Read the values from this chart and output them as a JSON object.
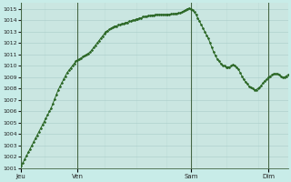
{
  "background_color": "#c8ece8",
  "plot_bg_color": "#d4ede8",
  "grid_color": "#a8ccc8",
  "line_color": "#2a6624",
  "marker_color": "#2a6624",
  "ylim": [
    1001,
    1015.5
  ],
  "ytick_min": 1001,
  "ytick_max": 1015,
  "xtick_labels": [
    "Jeu",
    "Ven",
    "Sam",
    "Dim"
  ],
  "xtick_positions": [
    0,
    32,
    96,
    140
  ],
  "vline_positions": [
    0,
    32,
    96,
    140
  ],
  "total_points": 152,
  "y_values": [
    1001.2,
    1001.5,
    1001.8,
    1002.1,
    1002.4,
    1002.7,
    1003.0,
    1003.3,
    1003.6,
    1003.9,
    1004.2,
    1004.5,
    1004.8,
    1005.1,
    1005.4,
    1005.7,
    1006.0,
    1006.3,
    1006.7,
    1007.1,
    1007.5,
    1007.9,
    1008.2,
    1008.5,
    1008.8,
    1009.1,
    1009.4,
    1009.6,
    1009.8,
    1010.0,
    1010.2,
    1010.4,
    1010.5,
    1010.6,
    1010.7,
    1010.8,
    1010.9,
    1011.0,
    1011.1,
    1011.2,
    1011.4,
    1011.6,
    1011.8,
    1012.0,
    1012.2,
    1012.4,
    1012.6,
    1012.8,
    1013.0,
    1013.1,
    1013.2,
    1013.3,
    1013.4,
    1013.5,
    1013.5,
    1013.6,
    1013.6,
    1013.7,
    1013.7,
    1013.8,
    1013.8,
    1013.9,
    1013.9,
    1014.0,
    1014.0,
    1014.1,
    1014.1,
    1014.2,
    1014.2,
    1014.3,
    1014.3,
    1014.35,
    1014.4,
    1014.4,
    1014.45,
    1014.45,
    1014.5,
    1014.5,
    1014.5,
    1014.5,
    1014.5,
    1014.5,
    1014.5,
    1014.5,
    1014.52,
    1014.54,
    1014.56,
    1014.58,
    1014.6,
    1014.62,
    1014.65,
    1014.7,
    1014.8,
    1014.9,
    1015.0,
    1015.05,
    1015.0,
    1014.9,
    1014.7,
    1014.5,
    1014.2,
    1013.9,
    1013.6,
    1013.3,
    1013.0,
    1012.7,
    1012.4,
    1012.0,
    1011.6,
    1011.2,
    1010.9,
    1010.6,
    1010.4,
    1010.2,
    1010.05,
    1010.0,
    1009.9,
    1009.9,
    1009.9,
    1010.0,
    1010.1,
    1010.0,
    1009.9,
    1009.7,
    1009.4,
    1009.1,
    1008.8,
    1008.6,
    1008.4,
    1008.2,
    1008.1,
    1008.0,
    1007.9,
    1007.9,
    1008.0,
    1008.1,
    1008.3,
    1008.5,
    1008.7,
    1008.8,
    1009.0,
    1009.1,
    1009.2,
    1009.3,
    1009.3,
    1009.3,
    1009.2,
    1009.1,
    1009.0,
    1009.0,
    1009.1,
    1009.2
  ]
}
